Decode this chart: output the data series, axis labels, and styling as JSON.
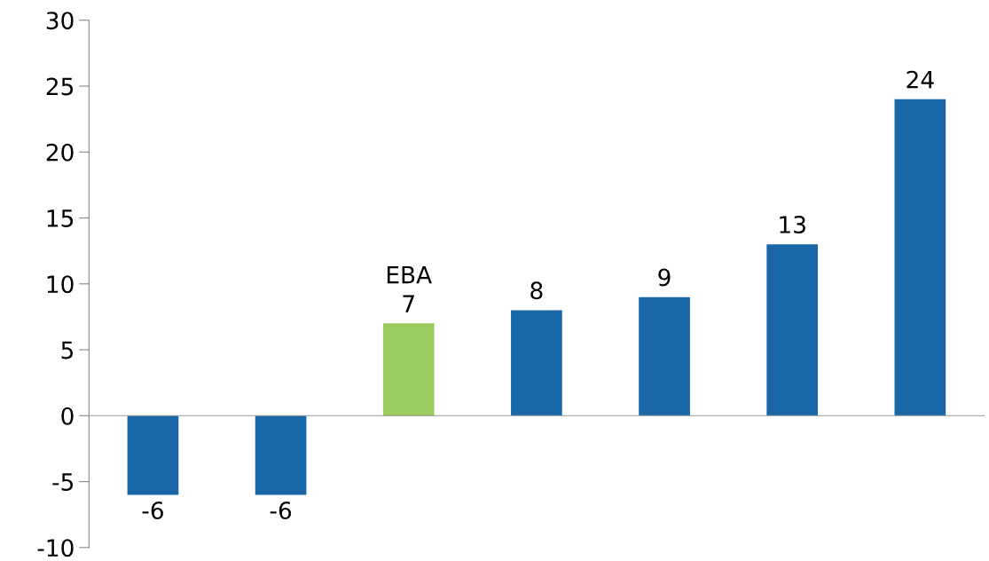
{
  "chart_data": {
    "type": "bar",
    "categories": [
      null,
      null,
      "EBA",
      null,
      null,
      null,
      null
    ],
    "values": [
      -6,
      -6,
      7,
      8,
      9,
      13,
      24
    ],
    "colors": [
      "#1a67a8",
      "#1a67a8",
      "#9bcb5f",
      "#1a67a8",
      "#1a67a8",
      "#1a67a8",
      "#1a67a8"
    ],
    "ylim": [
      -10,
      30
    ],
    "yticks": [
      -10,
      -5,
      0,
      5,
      10,
      15,
      20,
      25,
      30
    ],
    "data_labels": true
  }
}
